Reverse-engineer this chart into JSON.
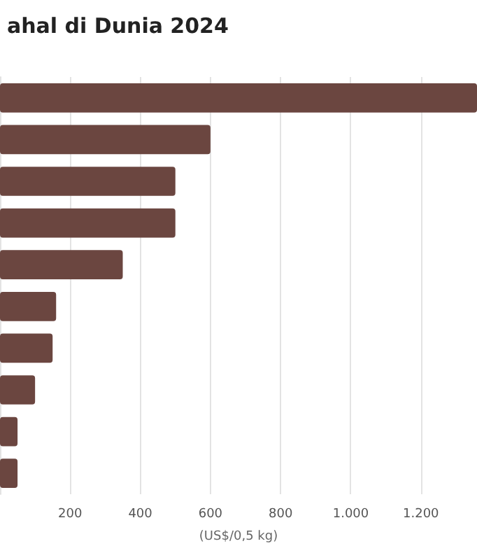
{
  "chart_data": {
    "type": "bar",
    "orientation": "horizontal",
    "title": "ahal di Dunia 2024",
    "xlabel": "(US$/0,5 kg)",
    "categories": [
      null,
      null,
      null,
      null,
      null,
      null,
      null,
      null,
      null,
      null
    ],
    "values": [
      1360,
      600,
      500,
      500,
      350,
      160,
      150,
      100,
      50,
      50
    ],
    "color": "#6b4640",
    "xlim": [
      0,
      1360
    ],
    "xticks": [
      200,
      400,
      600,
      800,
      {
        "value": 1000,
        "label": "1.000"
      },
      {
        "value": 1200,
        "label": "1.200"
      }
    ],
    "grid": "x",
    "tick_labels": "x"
  }
}
